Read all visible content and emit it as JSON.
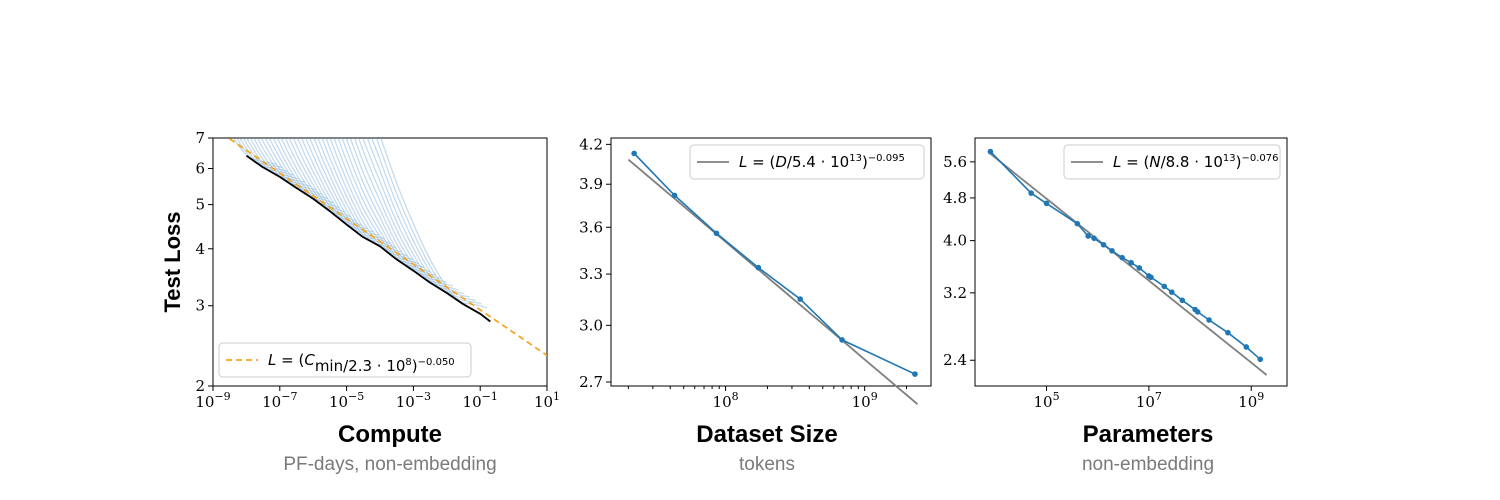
{
  "chart_data": [
    {
      "type": "line",
      "ylabel": "Test Loss",
      "xlabel": "Compute",
      "subtitle": "PF-days, non-embedding",
      "x_scale": "log",
      "y_scale": "log",
      "xlim": [
        1e-09,
        10
      ],
      "ylim": [
        2,
        7
      ],
      "x_ticks": [
        {
          "b": "10",
          "e": "−9"
        },
        {
          "b": "10",
          "e": "−7"
        },
        {
          "b": "10",
          "e": "−5"
        },
        {
          "b": "10",
          "e": "−3"
        },
        {
          "b": "10",
          "e": "−1"
        },
        {
          "b": "10",
          "e": "1"
        }
      ],
      "y_ticks": [
        "2",
        "3",
        "4",
        "5",
        "6",
        "7"
      ],
      "legend": {
        "placement": "lower-left",
        "label": "L = (C_min/2.3 · 10^8)^−0.050"
      },
      "fit": {
        "A": 230000000,
        "alpha": 0.05,
        "color": "#f5a623"
      },
      "frontier": {
        "x": [
          1e-08,
          3e-08,
          1e-07,
          3e-07,
          1e-06,
          3e-06,
          1e-05,
          3e-05,
          0.0001,
          0.0003,
          0.001,
          0.003,
          0.01,
          0.03,
          0.1,
          0.2
        ],
        "y": [
          6.4,
          6.05,
          5.75,
          5.45,
          5.15,
          4.85,
          4.52,
          4.25,
          4.05,
          3.8,
          3.58,
          3.38,
          3.2,
          3.03,
          2.88,
          2.77
        ],
        "color": "#000000"
      },
      "run_color": "#7fb0d8"
    },
    {
      "type": "line",
      "xlabel": "Dataset Size",
      "subtitle": "tokens",
      "x_scale": "log",
      "y_scale": "log",
      "xlim": [
        15000000,
        3000000000
      ],
      "ylim": [
        2.68,
        4.25
      ],
      "x_ticks": [
        {
          "b": "10",
          "e": "8"
        },
        {
          "b": "10",
          "e": "9"
        }
      ],
      "y_ticks": [
        "2.7",
        "3.0",
        "3.3",
        "3.6",
        "3.9",
        "4.2"
      ],
      "legend": {
        "placement": "top-right",
        "label": "L = (D/5.4 · 10^13)^−0.095"
      },
      "fit": {
        "A": 54000000000000,
        "alpha": 0.095,
        "color": "#7f7f7f"
      },
      "series": [
        {
          "x": [
            22000000,
            43000000,
            86000000,
            172000000,
            344000000,
            688000000,
            2300000000
          ],
          "y": [
            4.13,
            3.82,
            3.56,
            3.34,
            3.15,
            2.92,
            2.74
          ],
          "color": "#1f77b4"
        }
      ]
    },
    {
      "type": "line",
      "xlabel": "Parameters",
      "subtitle": "non-embedding",
      "x_scale": "log",
      "y_scale": "log",
      "xlim": [
        4000,
        5000000000
      ],
      "ylim": [
        2.15,
        6.2
      ],
      "x_ticks": [
        {
          "b": "10",
          "e": "5"
        },
        {
          "b": "10",
          "e": "7"
        },
        {
          "b": "10",
          "e": "9"
        }
      ],
      "y_ticks": [
        "2.4",
        "3.2",
        "4.0",
        "4.8",
        "5.6"
      ],
      "legend": {
        "placement": "top-right",
        "label": "L = (N/8.8 · 10^13)^−0.076"
      },
      "fit": {
        "A": 88000000000000,
        "alpha": 0.076,
        "color": "#7f7f7f"
      },
      "series": [
        {
          "x": [
            8000,
            50000,
            100000,
            400000,
            650000,
            850000,
            1300000,
            1900000,
            3000000,
            4500000,
            6500000,
            10000000,
            11000000,
            20000000,
            28000000,
            45000000,
            80000000,
            90000000,
            150000000,
            350000000,
            800000000,
            1500000000
          ],
          "y": [
            5.85,
            4.9,
            4.69,
            4.3,
            4.08,
            4.04,
            3.93,
            3.83,
            3.72,
            3.64,
            3.56,
            3.44,
            3.42,
            3.29,
            3.21,
            3.1,
            2.98,
            2.95,
            2.85,
            2.7,
            2.54,
            2.41
          ],
          "color": "#1f77b4"
        }
      ]
    }
  ]
}
